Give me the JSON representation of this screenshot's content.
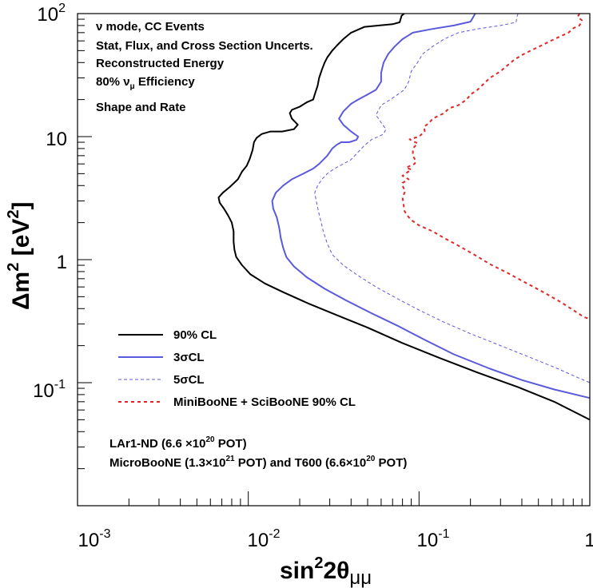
{
  "chart_data": {
    "type": "line",
    "xscale": "log",
    "yscale": "log",
    "xlim": [
      0.001,
      1
    ],
    "ylim": [
      0.01,
      100
    ],
    "x_ticks": [
      {
        "base": "10",
        "exp": "-3"
      },
      {
        "base": "10",
        "exp": "-2"
      },
      {
        "base": "10",
        "exp": "-1"
      },
      {
        "base": "1",
        "exp": ""
      }
    ],
    "y_ticks": [
      {
        "base": "10",
        "exp": "-1"
      },
      {
        "base": "1",
        "exp": ""
      },
      {
        "base": "10",
        "exp": ""
      },
      {
        "base": "10",
        "exp": "2"
      }
    ],
    "xlabel": {
      "main": "sin",
      "sup": "2",
      "mid": "2θ",
      "sub": "μμ"
    },
    "ylabel": {
      "main": "Δm",
      "sup": "2",
      "unit_open": " [eV",
      "unit_sup": "2",
      "unit_close": "]"
    },
    "annotations": {
      "line1": "ν mode, CC Events",
      "line2": "Stat, Flux, and Cross Section Uncerts.",
      "line3": "Reconstructed Energy",
      "line4_pre": "80% ν",
      "line4_sub": "μ",
      "line4_post": " Efficiency",
      "line5": "Shape and Rate"
    },
    "exposure": {
      "lar1_pre": "LAr1-ND (6.6 ×10",
      "lar1_exp": "20",
      "lar1_post": " POT)",
      "micro_pre": "MicroBooNE (1.3×10",
      "micro_exp": "21",
      "micro_mid": " POT) and T600 (6.6×10",
      "micro_exp2": "20",
      "micro_post": " POT)"
    },
    "series": [
      {
        "name": "90% CL",
        "color": "#000000",
        "dash": "solid",
        "points": [
          [
            0.0818,
            100
          ],
          [
            0.079,
            96
          ],
          [
            0.077,
            85
          ],
          [
            0.07,
            82
          ],
          [
            0.048,
            78
          ],
          [
            0.04,
            70
          ],
          [
            0.036,
            62
          ],
          [
            0.033,
            55
          ],
          [
            0.031,
            50
          ],
          [
            0.029,
            44
          ],
          [
            0.028,
            40
          ],
          [
            0.027,
            35
          ],
          [
            0.026,
            30
          ],
          [
            0.0255,
            26
          ],
          [
            0.0245,
            22
          ],
          [
            0.024,
            20
          ],
          [
            0.022,
            19
          ],
          [
            0.02,
            17.5
          ],
          [
            0.018,
            16.5
          ],
          [
            0.0175,
            15.5
          ],
          [
            0.018,
            14
          ],
          [
            0.0195,
            12.5
          ],
          [
            0.0185,
            11.5
          ],
          [
            0.0158,
            11
          ],
          [
            0.0135,
            11
          ],
          [
            0.012,
            10.5
          ],
          [
            0.0112,
            9.8
          ],
          [
            0.0108,
            9
          ],
          [
            0.0106,
            7.8
          ],
          [
            0.0102,
            6.6
          ],
          [
            0.0098,
            5.8
          ],
          [
            0.0092,
            5.2
          ],
          [
            0.0087,
            4.5
          ],
          [
            0.0078,
            3.9
          ],
          [
            0.0071,
            3.5
          ],
          [
            0.0067,
            3.2
          ],
          [
            0.0068,
            2.9
          ],
          [
            0.0072,
            2.6
          ],
          [
            0.0076,
            2.3
          ],
          [
            0.008,
            2.0
          ],
          [
            0.0082,
            1.7
          ],
          [
            0.0082,
            1.4
          ],
          [
            0.0083,
            1.2
          ],
          [
            0.0085,
            1.05
          ],
          [
            0.0092,
            0.9
          ],
          [
            0.0103,
            0.76
          ],
          [
            0.0125,
            0.64
          ],
          [
            0.0162,
            0.54
          ],
          [
            0.0225,
            0.44
          ],
          [
            0.032,
            0.36
          ],
          [
            0.05,
            0.28
          ],
          [
            0.08,
            0.21
          ],
          [
            0.13,
            0.16
          ],
          [
            0.22,
            0.121
          ],
          [
            0.38,
            0.092
          ],
          [
            0.62,
            0.07
          ],
          [
            1,
            0.05
          ]
        ]
      },
      {
        "name": "3σCL",
        "color": "#5a5adc",
        "dash": "solid",
        "points": [
          [
            0.213,
            100
          ],
          [
            0.208,
            94
          ],
          [
            0.2,
            86
          ],
          [
            0.16,
            80
          ],
          [
            0.12,
            75
          ],
          [
            0.092,
            70
          ],
          [
            0.08,
            62
          ],
          [
            0.072,
            54
          ],
          [
            0.066,
            47
          ],
          [
            0.062,
            40
          ],
          [
            0.06,
            33
          ],
          [
            0.06,
            28
          ],
          [
            0.056,
            24
          ],
          [
            0.05,
            22
          ],
          [
            0.044,
            20
          ],
          [
            0.04,
            18.5
          ],
          [
            0.036,
            16
          ],
          [
            0.034,
            14
          ],
          [
            0.036,
            12.5
          ],
          [
            0.04,
            11
          ],
          [
            0.044,
            10
          ],
          [
            0.043,
            9.4
          ],
          [
            0.039,
            9
          ],
          [
            0.035,
            9
          ],
          [
            0.033,
            8.6
          ],
          [
            0.031,
            8
          ],
          [
            0.029,
            7
          ],
          [
            0.026,
            6
          ],
          [
            0.024,
            5.5
          ],
          [
            0.021,
            5
          ],
          [
            0.018,
            4.5
          ],
          [
            0.016,
            4
          ],
          [
            0.0145,
            3.5
          ],
          [
            0.0138,
            3
          ],
          [
            0.014,
            2.6
          ],
          [
            0.0147,
            2.2
          ],
          [
            0.0152,
            1.8
          ],
          [
            0.0155,
            1.5
          ],
          [
            0.016,
            1.25
          ],
          [
            0.0167,
            1.05
          ],
          [
            0.0185,
            0.88
          ],
          [
            0.022,
            0.72
          ],
          [
            0.028,
            0.58
          ],
          [
            0.037,
            0.47
          ],
          [
            0.052,
            0.37
          ],
          [
            0.075,
            0.29
          ],
          [
            0.11,
            0.22
          ],
          [
            0.16,
            0.17
          ],
          [
            0.26,
            0.13
          ],
          [
            0.4,
            0.105
          ],
          [
            0.62,
            0.088
          ],
          [
            1,
            0.075
          ]
        ]
      },
      {
        "name": "5σCL",
        "color": "#5a5adc",
        "dash": "dashed",
        "points": [
          [
            0.38,
            100
          ],
          [
            0.375,
            95
          ],
          [
            0.37,
            85
          ],
          [
            0.3,
            80
          ],
          [
            0.22,
            75
          ],
          [
            0.17,
            70
          ],
          [
            0.14,
            62
          ],
          [
            0.12,
            54
          ],
          [
            0.105,
            47
          ],
          [
            0.098,
            40
          ],
          [
            0.09,
            34
          ],
          [
            0.087,
            28
          ],
          [
            0.082,
            24
          ],
          [
            0.075,
            22
          ],
          [
            0.068,
            20
          ],
          [
            0.06,
            18
          ],
          [
            0.056,
            15
          ],
          [
            0.06,
            13
          ],
          [
            0.064,
            11.5
          ],
          [
            0.062,
            10.5
          ],
          [
            0.058,
            10
          ],
          [
            0.053,
            9.5
          ],
          [
            0.048,
            8.5
          ],
          [
            0.044,
            7.5
          ],
          [
            0.04,
            6.5
          ],
          [
            0.036,
            6
          ],
          [
            0.032,
            5.5
          ],
          [
            0.029,
            5
          ],
          [
            0.027,
            4.5
          ],
          [
            0.0255,
            4
          ],
          [
            0.0245,
            3.5
          ],
          [
            0.025,
            3
          ],
          [
            0.0257,
            2.5
          ],
          [
            0.0265,
            2.1
          ],
          [
            0.0275,
            1.7
          ],
          [
            0.029,
            1.35
          ],
          [
            0.031,
            1.1
          ],
          [
            0.036,
            0.9
          ],
          [
            0.044,
            0.74
          ],
          [
            0.056,
            0.6
          ],
          [
            0.075,
            0.48
          ],
          [
            0.1,
            0.39
          ],
          [
            0.14,
            0.31
          ],
          [
            0.2,
            0.25
          ],
          [
            0.3,
            0.2
          ],
          [
            0.45,
            0.16
          ],
          [
            0.65,
            0.13
          ],
          [
            0.85,
            0.11
          ],
          [
            1,
            0.1
          ]
        ]
      },
      {
        "name": "MiniBooNE + SciBooNE 90% CL",
        "color": "#e02828",
        "dash": "dotted",
        "points": [
          [
            0.87,
            100
          ],
          [
            0.85,
            94
          ],
          [
            0.9,
            88
          ],
          [
            0.87,
            80
          ],
          [
            0.8,
            76
          ],
          [
            0.75,
            70
          ],
          [
            0.62,
            62
          ],
          [
            0.52,
            55
          ],
          [
            0.45,
            50
          ],
          [
            0.4,
            46
          ],
          [
            0.36,
            42
          ],
          [
            0.33,
            38
          ],
          [
            0.3,
            34
          ],
          [
            0.26,
            30
          ],
          [
            0.24,
            27
          ],
          [
            0.22,
            24
          ],
          [
            0.2,
            22
          ],
          [
            0.19,
            20
          ],
          [
            0.17,
            18
          ],
          [
            0.15,
            17
          ],
          [
            0.14,
            15.5
          ],
          [
            0.12,
            14
          ],
          [
            0.115,
            13
          ],
          [
            0.107,
            12
          ],
          [
            0.108,
            11
          ],
          [
            0.1,
            10
          ],
          [
            0.088,
            9.5
          ],
          [
            0.098,
            8.8
          ],
          [
            0.092,
            8
          ],
          [
            0.092,
            7
          ],
          [
            0.096,
            6.3
          ],
          [
            0.094,
            6
          ],
          [
            0.084,
            5.6
          ],
          [
            0.09,
            5.4
          ],
          [
            0.085,
            5.1
          ],
          [
            0.08,
            4.8
          ],
          [
            0.087,
            4.5
          ],
          [
            0.08,
            4.2
          ],
          [
            0.08,
            4
          ],
          [
            0.083,
            3.6
          ],
          [
            0.08,
            3.2
          ],
          [
            0.081,
            2.9
          ],
          [
            0.082,
            2.5
          ],
          [
            0.085,
            2.3
          ],
          [
            0.09,
            2.1
          ],
          [
            0.1,
            1.9
          ],
          [
            0.12,
            1.7
          ],
          [
            0.14,
            1.5
          ],
          [
            0.17,
            1.3
          ],
          [
            0.21,
            1.1
          ],
          [
            0.26,
            0.92
          ],
          [
            0.33,
            0.78
          ],
          [
            0.42,
            0.65
          ],
          [
            0.54,
            0.54
          ],
          [
            0.68,
            0.45
          ],
          [
            0.82,
            0.38
          ],
          [
            0.93,
            0.34
          ],
          [
            1,
            0.33
          ]
        ]
      }
    ]
  }
}
